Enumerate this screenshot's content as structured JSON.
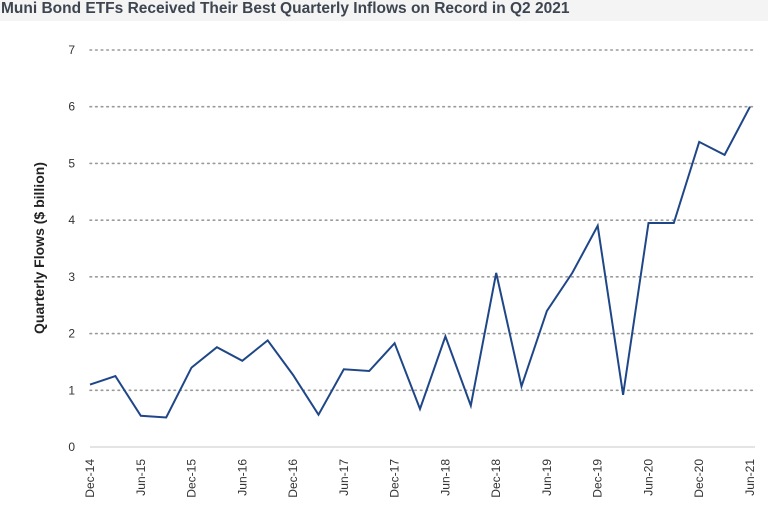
{
  "chart_data": {
    "type": "line",
    "title": "Muni Bond ETFs Received Their Best Quarterly Inflows on Record in Q2 2021",
    "ylabel": "Quarterly Flows ($ billion)",
    "xlabel": "",
    "ylim": [
      0,
      7
    ],
    "yticks": [
      0,
      1,
      2,
      3,
      4,
      5,
      6,
      7
    ],
    "grid": "horizontal-dotted",
    "x_tick_labels": [
      "Dec-14",
      "Jun-15",
      "Dec-15",
      "Jun-16",
      "Dec-16",
      "Jun-17",
      "Dec-17",
      "Jun-18",
      "Dec-18",
      "Jun-19",
      "Dec-19",
      "Jun-20",
      "Dec-20",
      "Jun-21"
    ],
    "x": [
      "Dec-14",
      "Mar-15",
      "Jun-15",
      "Sep-15",
      "Dec-15",
      "Mar-16",
      "Jun-16",
      "Sep-16",
      "Dec-16",
      "Mar-17",
      "Jun-17",
      "Sep-17",
      "Dec-17",
      "Mar-18",
      "Jun-18",
      "Sep-18",
      "Dec-18",
      "Mar-19",
      "Jun-19",
      "Sep-19",
      "Dec-19",
      "Mar-20",
      "Jun-20",
      "Sep-20",
      "Dec-20",
      "Mar-21",
      "Jun-21"
    ],
    "series": [
      {
        "color": "#1f4788",
        "values": [
          1.1,
          1.25,
          0.55,
          0.52,
          1.4,
          1.76,
          1.52,
          1.88,
          1.27,
          0.57,
          1.37,
          1.34,
          1.83,
          0.67,
          1.95,
          0.73,
          3.07,
          1.07,
          2.4,
          3.07,
          3.9,
          0.92,
          3.95,
          3.95,
          5.38,
          5.15,
          6.0
        ]
      }
    ]
  }
}
